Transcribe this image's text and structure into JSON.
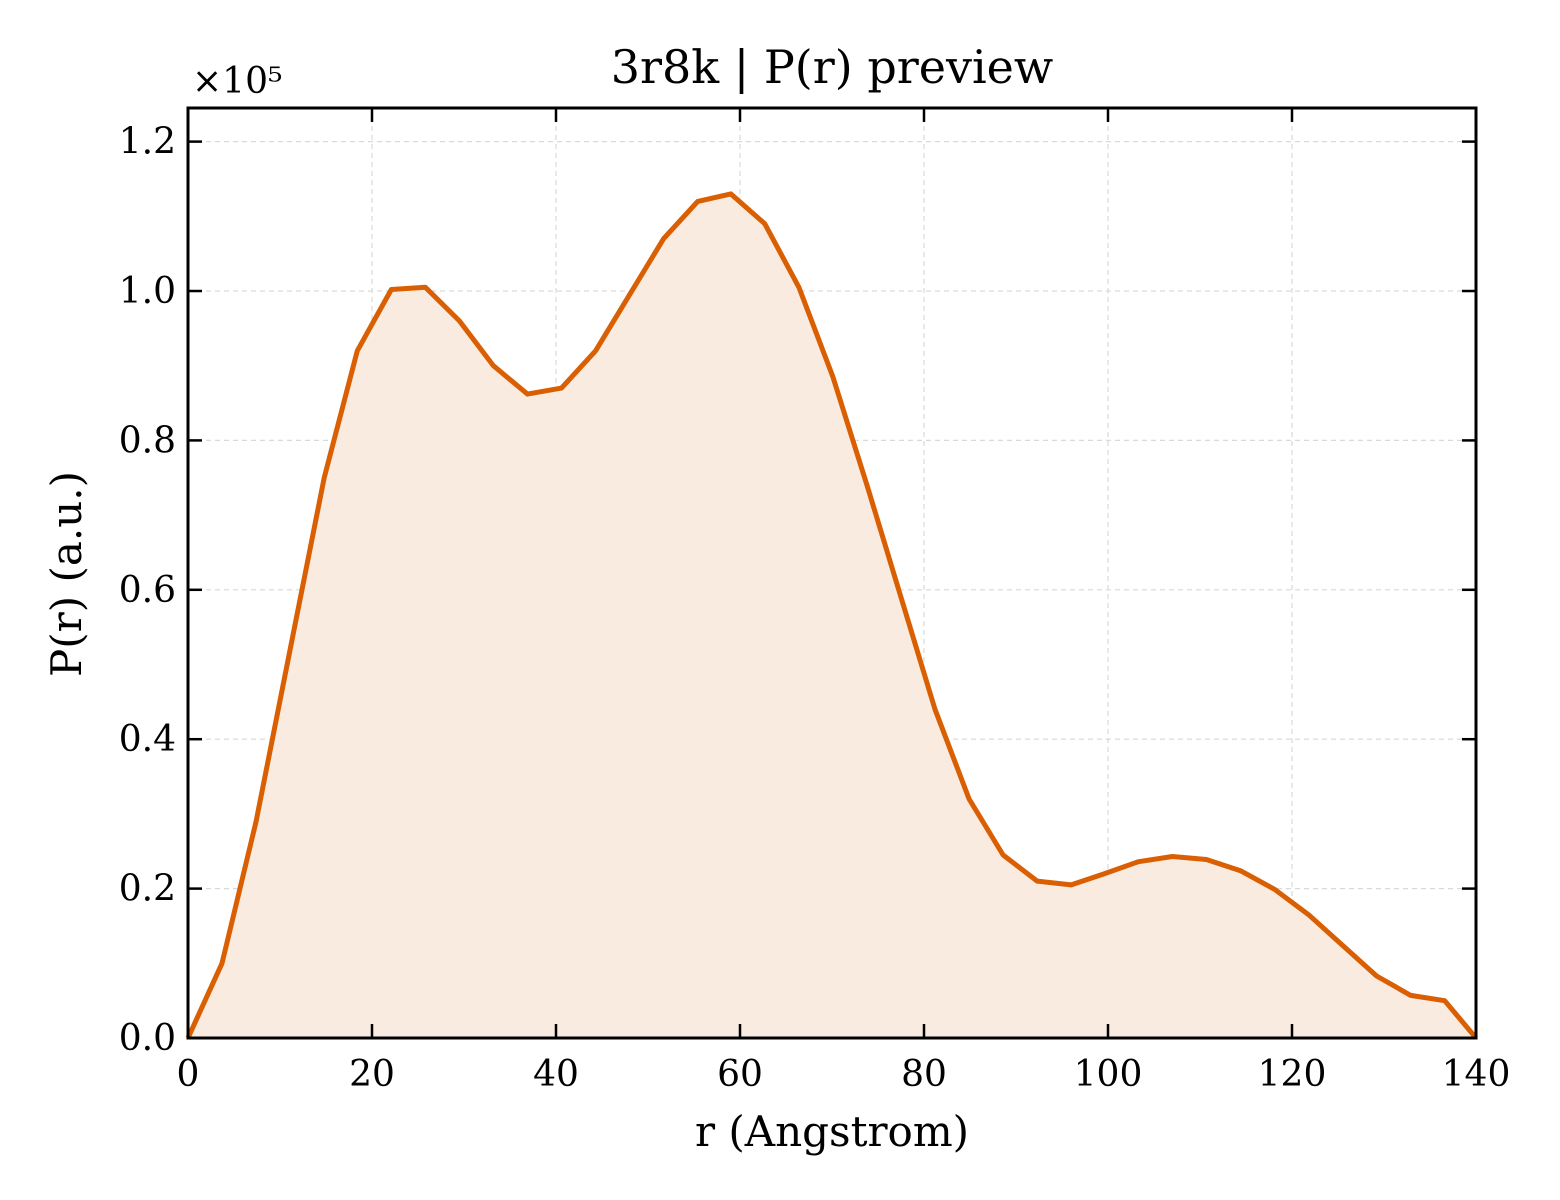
{
  "chart_data": {
    "type": "area",
    "title": "3r8k | P(r) preview",
    "xlabel": "r (Angstrom)",
    "ylabel": "P(r) (a.u.)",
    "y_offset_label": "×10⁵",
    "y_scale": 100000,
    "xlim": [
      0,
      140
    ],
    "ylim": [
      0,
      1.245
    ],
    "xticks": [
      0,
      20,
      40,
      60,
      80,
      100,
      120,
      140
    ],
    "xtick_labels": [
      "0",
      "20",
      "40",
      "60",
      "80",
      "100",
      "120",
      "140"
    ],
    "yticks": [
      0.0,
      0.2,
      0.4,
      0.6,
      0.8,
      1.0,
      1.2
    ],
    "ytick_labels": [
      "0.0",
      "0.2",
      "0.4",
      "0.6",
      "0.8",
      "1.0",
      "1.2"
    ],
    "grid": true,
    "line_color": "#d95f02",
    "fill_color": "#f9ebe0",
    "series": [
      {
        "x": [
          0,
          3.7,
          7.4,
          11.1,
          14.8,
          18.4,
          22.1,
          25.8,
          29.5,
          33.2,
          36.9,
          40.6,
          44.3,
          48.0,
          51.7,
          55.4,
          59.0,
          62.7,
          66.4,
          70.1,
          73.8,
          77.5,
          81.2,
          84.9,
          88.6,
          92.3,
          96.0,
          99.6,
          103.3,
          107.0,
          110.7,
          114.4,
          118.1,
          121.8,
          125.5,
          129.2,
          132.9,
          136.6,
          140
        ],
        "y": [
          0.0,
          0.1,
          0.29,
          0.52,
          0.75,
          0.92,
          1.002,
          1.005,
          0.96,
          0.9,
          0.862,
          0.87,
          0.92,
          0.995,
          1.07,
          1.12,
          1.13,
          1.09,
          1.005,
          0.885,
          0.74,
          0.59,
          0.44,
          0.32,
          0.245,
          0.21,
          0.205,
          0.22,
          0.236,
          0.243,
          0.239,
          0.224,
          0.199,
          0.165,
          0.124,
          0.083,
          0.057,
          0.05,
          0.0
        ]
      }
    ]
  }
}
